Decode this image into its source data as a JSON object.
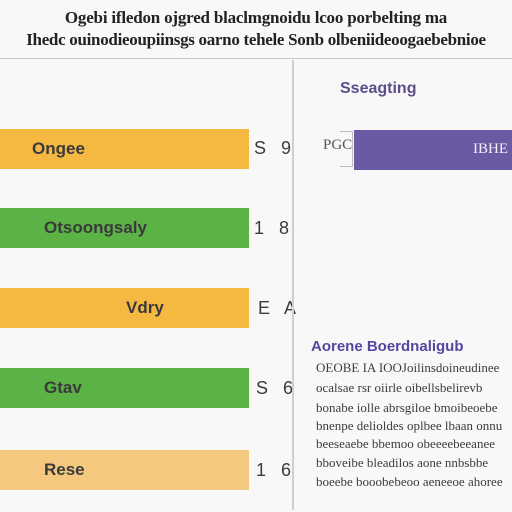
{
  "header": {
    "line1": "Ogebi ifledon ojgred blaclmgnoidu lcoo porbelting ma",
    "line2": "Ihedc ouinodieoupiinsgs oarno tehele Sonb olbeniideoogaebebnioe"
  },
  "bars": [
    {
      "label": "Ongee",
      "value": "S 9",
      "color": "#f5b942",
      "fill": 1.0
    },
    {
      "label": "Otsoongsaly",
      "value": "1 8",
      "color": "#5bb346",
      "fill": 1.0
    },
    {
      "label": "Vdry",
      "value": "E A",
      "color": "#f5b942",
      "fill": 1.0
    },
    {
      "label": "Gtav",
      "value": "S 6",
      "color": "#5bb346",
      "fill": 1.0
    },
    {
      "label": "Rese",
      "value": "1 6",
      "color": "#f4c97f",
      "fill": 1.0
    }
  ],
  "right_panel": {
    "title": "Sseagting",
    "legend_label": "PGC",
    "purple_bar_label": "IBHE",
    "purple_color": "#6b5aa3"
  },
  "notes": {
    "title": "Aorene Boerdnaligub",
    "lines": [
      "OEOBE IA IOOJoilinsdoineudinee",
      "ocalsae rsr oiirle oibellsbelirevb",
      "bonabe iolle abrsgiloe bmoibeoebe",
      "bnenpe delioldes oplbee lbaan onnu",
      "beeseaebe bbemoo obeeeebeeanee",
      "bboveibe bleadilos aone nnbsbbe",
      "boeebe booobebeoo aeneeoe ahoree"
    ]
  }
}
